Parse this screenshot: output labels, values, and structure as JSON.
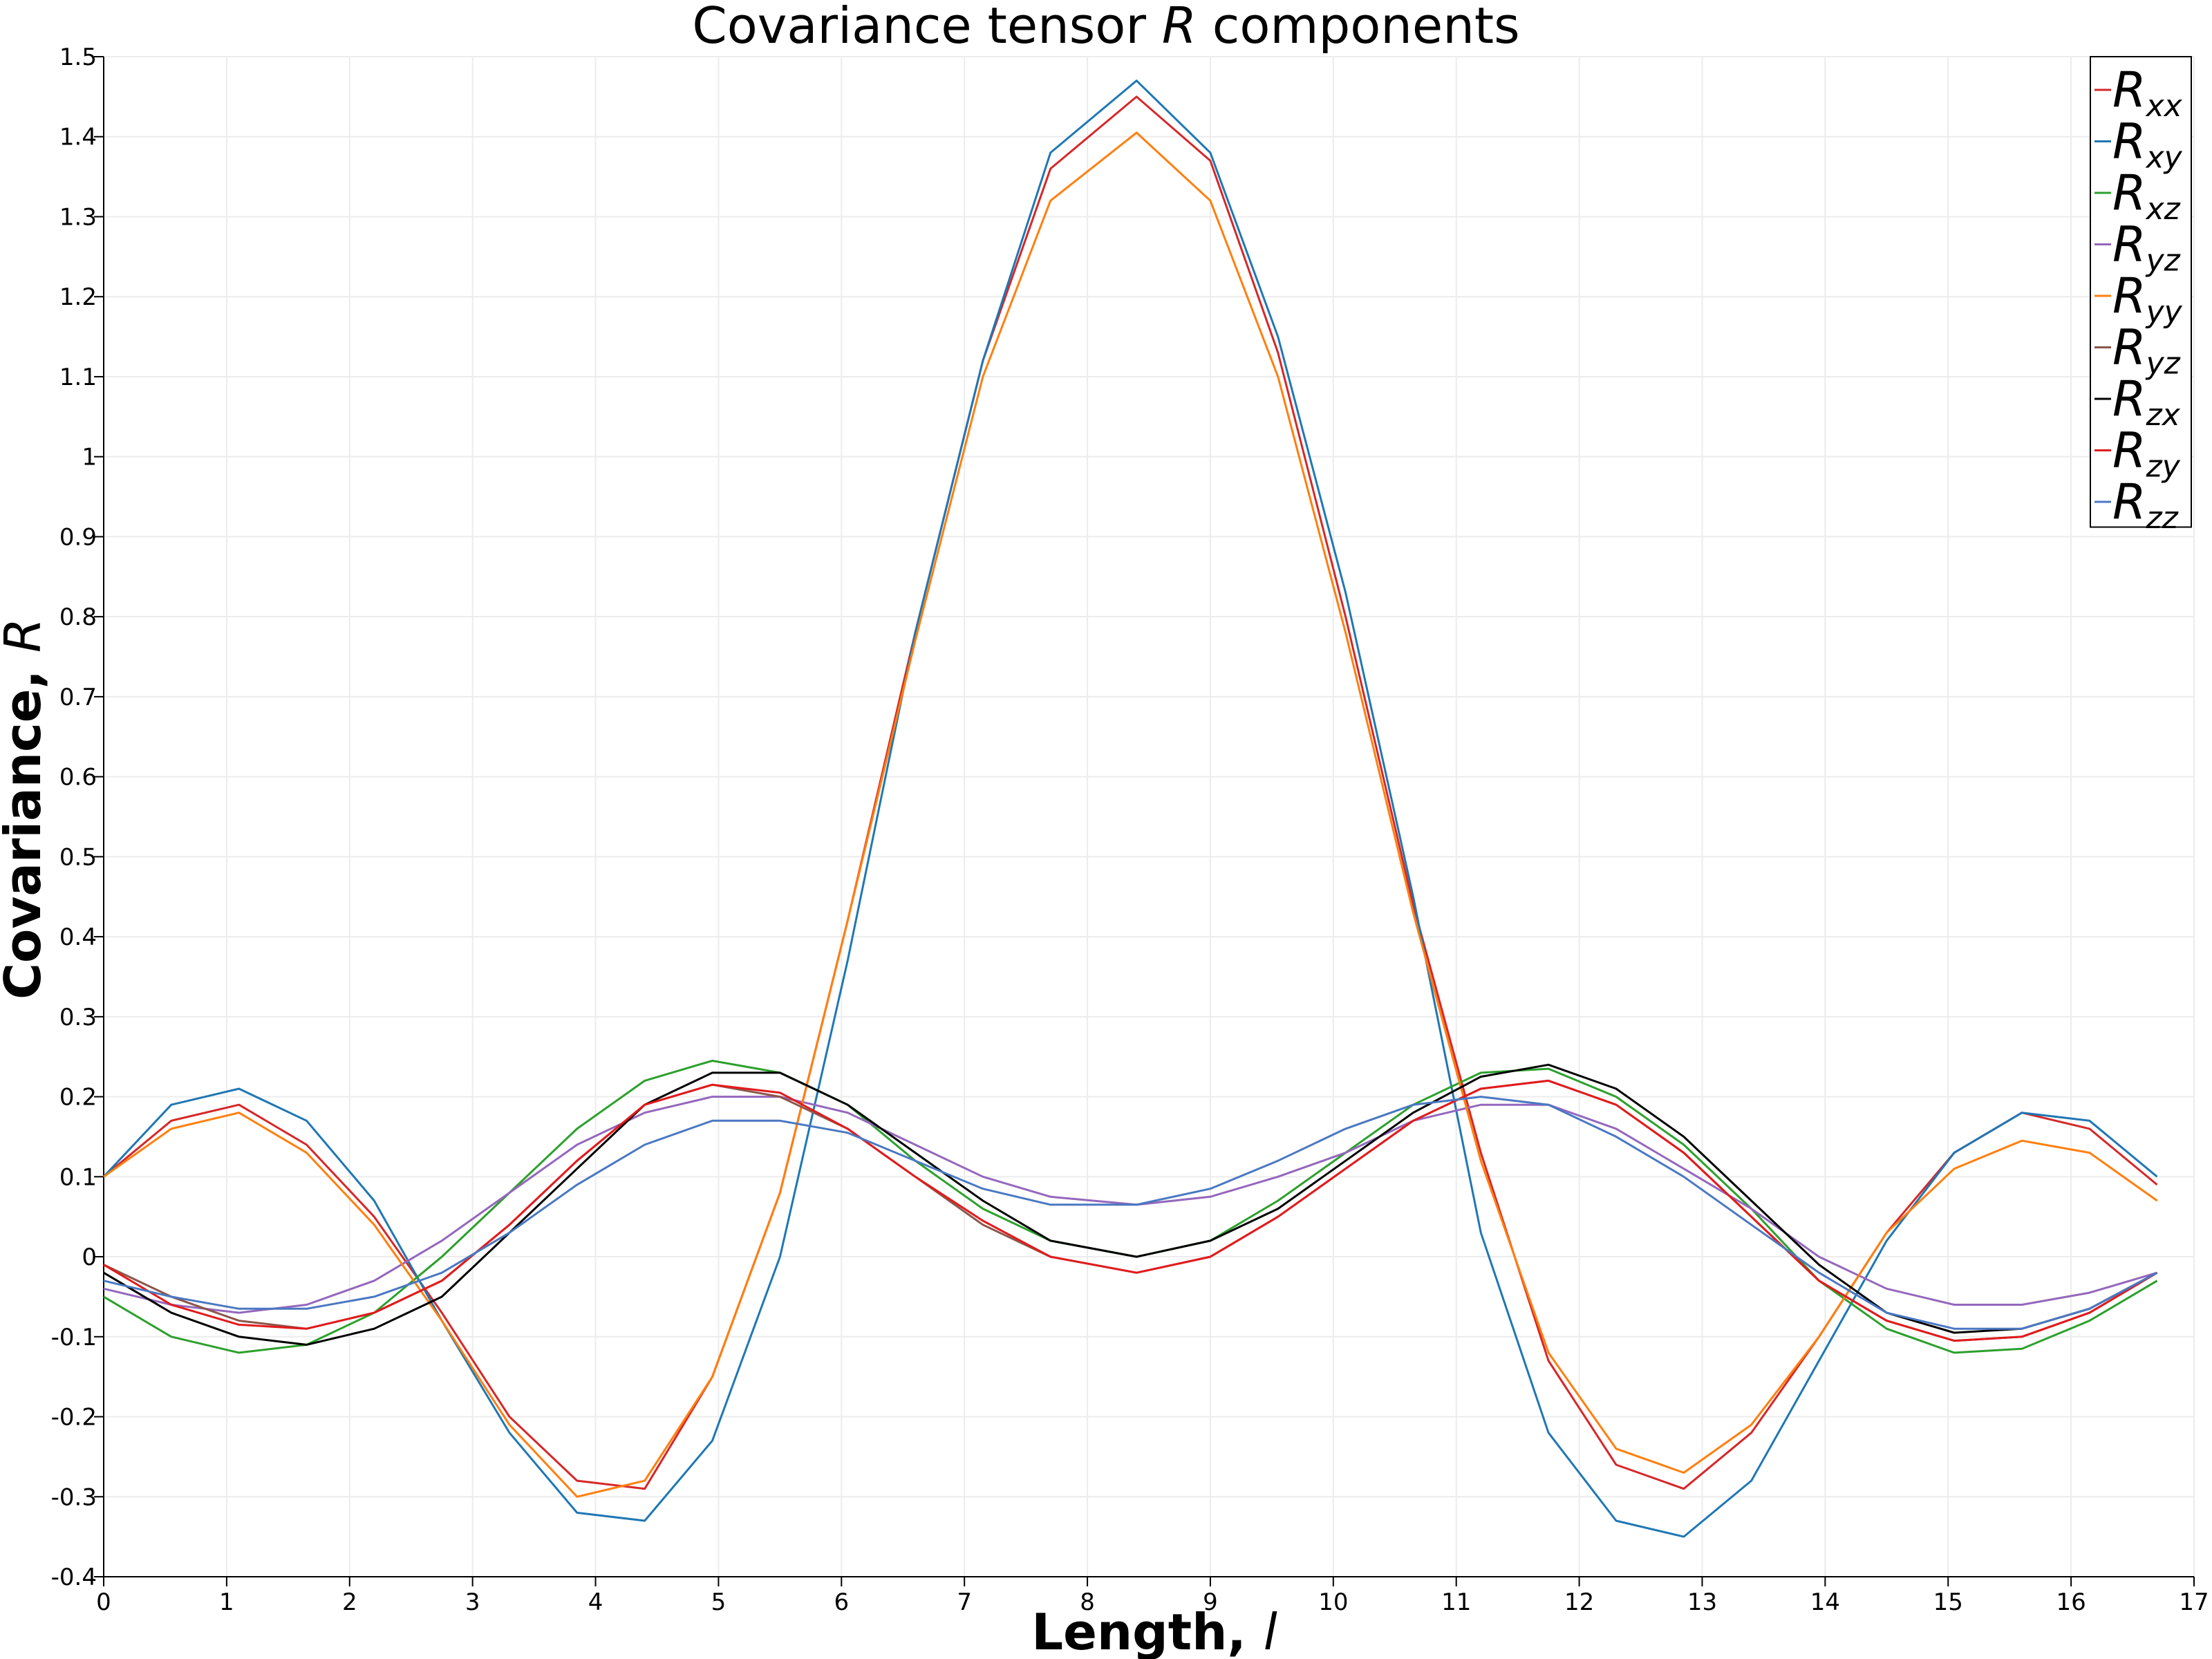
{
  "chart_data": {
    "type": "line",
    "title": {
      "prefix": "Covariance tensor ",
      "symbol": "R",
      "suffix": " components"
    },
    "xlabel": {
      "prefix": "Length, ",
      "symbol": "l"
    },
    "ylabel": {
      "prefix": "Covariance, ",
      "symbol": "R"
    },
    "xlim": [
      0,
      17
    ],
    "ylim": [
      -0.4,
      1.5
    ],
    "xticks": [
      "0",
      "1",
      "2",
      "3",
      "4",
      "5",
      "6",
      "7",
      "8",
      "9",
      "10",
      "11",
      "12",
      "13",
      "14",
      "15",
      "16",
      "17"
    ],
    "yticks": [
      "-0.4",
      "-0.3",
      "-0.2",
      "-0.1",
      "0",
      "0.1",
      "0.2",
      "0.3",
      "0.4",
      "0.5",
      "0.6",
      "0.7",
      "0.8",
      "0.9",
      "1",
      "1.1",
      "1.2",
      "1.3",
      "1.4",
      "1.5"
    ],
    "grid": true,
    "legend_position": "top-right",
    "series": [
      {
        "name": "R",
        "sub": "xx",
        "color": "#d62728",
        "x": [
          0,
          0.55,
          1.1,
          1.65,
          2.2,
          2.75,
          3.3,
          3.85,
          4.4,
          4.95,
          5.5,
          6.05,
          6.6,
          7.15,
          7.7,
          8.4,
          9.0,
          9.55,
          10.1,
          10.65,
          11.2,
          11.75,
          12.3,
          12.85,
          13.4,
          13.95,
          14.5,
          15.05,
          15.6,
          16.15,
          16.7
        ],
        "y": [
          0.1,
          0.17,
          0.19,
          0.14,
          0.05,
          -0.07,
          -0.2,
          -0.28,
          -0.29,
          -0.15,
          0.08,
          0.42,
          0.78,
          1.12,
          1.36,
          1.45,
          1.37,
          1.13,
          0.8,
          0.44,
          0.13,
          -0.13,
          -0.26,
          -0.29,
          -0.22,
          -0.1,
          0.03,
          0.13,
          0.18,
          0.16,
          0.09
        ]
      },
      {
        "name": "R",
        "sub": "xy",
        "color": "#1f77b4",
        "x": [
          0,
          0.55,
          1.1,
          1.65,
          2.2,
          2.75,
          3.3,
          3.85,
          4.4,
          4.95,
          5.5,
          6.05,
          6.6,
          7.15,
          7.7,
          8.4,
          9.0,
          9.55,
          10.1,
          10.65,
          11.2,
          11.75,
          12.3,
          12.85,
          13.4,
          13.95,
          14.5,
          15.05,
          15.6,
          16.15,
          16.7
        ],
        "y": [
          0.1,
          0.19,
          0.21,
          0.17,
          0.07,
          -0.08,
          -0.22,
          -0.32,
          -0.33,
          -0.23,
          0.0,
          0.37,
          0.78,
          1.12,
          1.38,
          1.47,
          1.38,
          1.15,
          0.83,
          0.45,
          0.03,
          -0.22,
          -0.33,
          -0.35,
          -0.28,
          -0.13,
          0.02,
          0.13,
          0.18,
          0.17,
          0.1
        ]
      },
      {
        "name": "R",
        "sub": "xz",
        "color": "#2ca02c",
        "x": [
          0,
          0.55,
          1.1,
          1.65,
          2.2,
          2.75,
          3.3,
          3.85,
          4.4,
          4.95,
          5.5,
          6.05,
          6.6,
          7.15,
          7.7,
          8.4,
          9.0,
          9.55,
          10.1,
          10.65,
          11.2,
          11.75,
          12.3,
          12.85,
          13.4,
          13.95,
          14.5,
          15.05,
          15.6,
          16.15,
          16.7
        ],
        "y": [
          -0.05,
          -0.1,
          -0.12,
          -0.11,
          -0.07,
          0.0,
          0.08,
          0.16,
          0.22,
          0.245,
          0.23,
          0.19,
          0.12,
          0.06,
          0.02,
          0.0,
          0.02,
          0.07,
          0.13,
          0.19,
          0.23,
          0.235,
          0.2,
          0.14,
          0.06,
          -0.03,
          -0.09,
          -0.12,
          -0.115,
          -0.08,
          -0.03
        ]
      },
      {
        "name": "R",
        "sub": "yz",
        "color": "#9467bd",
        "x": [
          0,
          0.55,
          1.1,
          1.65,
          2.2,
          2.75,
          3.3,
          3.85,
          4.4,
          4.95,
          5.5,
          6.05,
          6.6,
          7.15,
          7.7,
          8.4,
          9.0,
          9.55,
          10.1,
          10.65,
          11.2,
          11.75,
          12.3,
          12.85,
          13.4,
          13.95,
          14.5,
          15.05,
          15.6,
          16.15,
          16.7
        ],
        "y": [
          -0.04,
          -0.06,
          -0.07,
          -0.06,
          -0.03,
          0.02,
          0.08,
          0.14,
          0.18,
          0.2,
          0.2,
          0.18,
          0.14,
          0.1,
          0.075,
          0.065,
          0.075,
          0.1,
          0.13,
          0.17,
          0.19,
          0.19,
          0.16,
          0.11,
          0.06,
          0.0,
          -0.04,
          -0.06,
          -0.06,
          -0.045,
          -0.02
        ]
      },
      {
        "name": "R",
        "sub": "yy",
        "color": "#ff7f0e",
        "x": [
          0,
          0.55,
          1.1,
          1.65,
          2.2,
          2.75,
          3.3,
          3.85,
          4.4,
          4.95,
          5.5,
          6.05,
          6.6,
          7.15,
          7.7,
          8.4,
          9.0,
          9.55,
          10.1,
          10.65,
          11.2,
          11.75,
          12.3,
          12.85,
          13.4,
          13.95,
          14.5,
          15.05,
          15.6,
          16.15,
          16.7
        ],
        "y": [
          0.1,
          0.16,
          0.18,
          0.13,
          0.04,
          -0.08,
          -0.21,
          -0.3,
          -0.28,
          -0.15,
          0.08,
          0.42,
          0.77,
          1.1,
          1.32,
          1.405,
          1.32,
          1.1,
          0.78,
          0.43,
          0.12,
          -0.12,
          -0.24,
          -0.27,
          -0.21,
          -0.1,
          0.03,
          0.11,
          0.145,
          0.13,
          0.07
        ]
      },
      {
        "name": "R",
        "sub": "yz",
        "color": "#8c564b",
        "x": [
          0,
          0.55,
          1.1,
          1.65,
          2.2,
          2.75,
          3.3,
          3.85,
          4.4,
          4.95,
          5.5,
          6.05,
          6.6,
          7.15,
          7.7,
          8.4,
          9.0,
          9.55,
          10.1,
          10.65,
          11.2,
          11.75,
          12.3,
          12.85,
          13.4,
          13.95,
          14.5,
          15.05,
          15.6,
          16.15,
          16.7
        ],
        "y": [
          -0.01,
          -0.05,
          -0.08,
          -0.09,
          -0.07,
          -0.03,
          0.04,
          0.12,
          0.19,
          0.215,
          0.2,
          0.16,
          0.1,
          0.04,
          0.0,
          -0.02,
          0.0,
          0.05,
          0.11,
          0.17,
          0.21,
          0.22,
          0.19,
          0.13,
          0.05,
          -0.03,
          -0.08,
          -0.105,
          -0.1,
          -0.07,
          -0.02
        ]
      },
      {
        "name": "R",
        "sub": "zx",
        "color": "#000000",
        "x": [
          0,
          0.55,
          1.1,
          1.65,
          2.2,
          2.75,
          3.3,
          3.85,
          4.4,
          4.95,
          5.5,
          6.05,
          6.6,
          7.15,
          7.7,
          8.4,
          9.0,
          9.55,
          10.1,
          10.65,
          11.2,
          11.75,
          12.3,
          12.85,
          13.4,
          13.95,
          14.5,
          15.05,
          15.6,
          16.15,
          16.7
        ],
        "y": [
          -0.02,
          -0.07,
          -0.1,
          -0.11,
          -0.09,
          -0.05,
          0.03,
          0.11,
          0.19,
          0.23,
          0.23,
          0.19,
          0.13,
          0.07,
          0.02,
          0.0,
          0.02,
          0.06,
          0.12,
          0.18,
          0.225,
          0.24,
          0.21,
          0.15,
          0.07,
          -0.01,
          -0.07,
          -0.095,
          -0.09,
          -0.065,
          -0.02
        ]
      },
      {
        "name": "R",
        "sub": "zy",
        "color": "#e31a1c",
        "x": [
          0,
          0.55,
          1.1,
          1.65,
          2.2,
          2.75,
          3.3,
          3.85,
          4.4,
          4.95,
          5.5,
          6.05,
          6.6,
          7.15,
          7.7,
          8.4,
          9.0,
          9.55,
          10.1,
          10.65,
          11.2,
          11.75,
          12.3,
          12.85,
          13.4,
          13.95,
          14.5,
          15.05,
          15.6,
          16.15,
          16.7
        ],
        "y": [
          -0.01,
          -0.06,
          -0.085,
          -0.09,
          -0.07,
          -0.03,
          0.04,
          0.12,
          0.19,
          0.215,
          0.205,
          0.16,
          0.1,
          0.045,
          0.0,
          -0.02,
          0.0,
          0.05,
          0.11,
          0.17,
          0.21,
          0.22,
          0.19,
          0.13,
          0.05,
          -0.03,
          -0.08,
          -0.105,
          -0.1,
          -0.07,
          -0.02
        ]
      },
      {
        "name": "R",
        "sub": "zz",
        "color": "#4a78c2",
        "x": [
          0,
          0.55,
          1.1,
          1.65,
          2.2,
          2.75,
          3.3,
          3.85,
          4.4,
          4.95,
          5.5,
          6.05,
          6.6,
          7.15,
          7.7,
          8.4,
          9.0,
          9.55,
          10.1,
          10.65,
          11.2,
          11.75,
          12.3,
          12.85,
          13.4,
          13.95,
          14.5,
          15.05,
          15.6,
          16.15,
          16.7
        ],
        "y": [
          -0.03,
          -0.05,
          -0.065,
          -0.065,
          -0.05,
          -0.02,
          0.03,
          0.09,
          0.14,
          0.17,
          0.17,
          0.155,
          0.12,
          0.085,
          0.065,
          0.065,
          0.085,
          0.12,
          0.16,
          0.19,
          0.2,
          0.19,
          0.15,
          0.1,
          0.04,
          -0.02,
          -0.07,
          -0.09,
          -0.09,
          -0.065,
          -0.02
        ]
      }
    ]
  }
}
